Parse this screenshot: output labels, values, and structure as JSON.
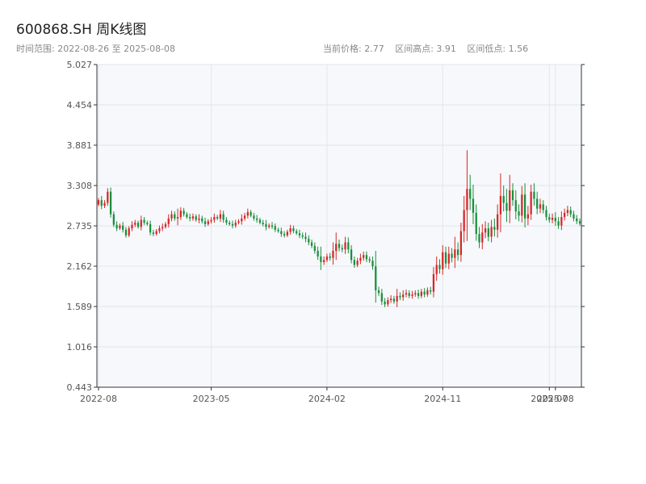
{
  "header": {
    "title": "600868.SH 周K线图",
    "subtitle": "时间范围: 2022-08-26 至 2025-08-08",
    "current_price": "当前价格: 2.77",
    "range_high": "区间高点: 3.91",
    "range_low": "区间低点: 1.56"
  },
  "colors": {
    "up": "#d62728",
    "down": "#1a8f3c",
    "grid": "#e3e6ea",
    "plot_bg": "#f6f8fb",
    "axis": "#333333"
  },
  "chart_data": {
    "type": "candlestick",
    "title": "600868.SH 周K线图",
    "ylim": [
      0.443,
      5.027
    ],
    "yticks": [
      "0.443",
      "1.016",
      "1.589",
      "2.162",
      "2.735",
      "3.308",
      "3.881",
      "4.454",
      "5.027"
    ],
    "xticks": [
      "2022-08",
      "2023-05",
      "2024-02",
      "2024-11",
      "2025-07",
      "2025-08"
    ],
    "xtick_index": [
      0,
      37,
      75,
      113,
      148,
      150
    ],
    "grid": true,
    "close": [
      3.1,
      3.02,
      3.06,
      3.22,
      2.9,
      2.75,
      2.7,
      2.74,
      2.68,
      2.6,
      2.7,
      2.75,
      2.78,
      2.72,
      2.82,
      2.78,
      2.76,
      2.64,
      2.62,
      2.66,
      2.7,
      2.72,
      2.76,
      2.84,
      2.9,
      2.84,
      2.86,
      2.95,
      2.9,
      2.86,
      2.84,
      2.87,
      2.82,
      2.84,
      2.8,
      2.76,
      2.8,
      2.82,
      2.86,
      2.84,
      2.9,
      2.82,
      2.78,
      2.76,
      2.74,
      2.78,
      2.8,
      2.84,
      2.88,
      2.93,
      2.88,
      2.84,
      2.82,
      2.78,
      2.76,
      2.72,
      2.74,
      2.73,
      2.68,
      2.66,
      2.62,
      2.6,
      2.65,
      2.7,
      2.66,
      2.63,
      2.6,
      2.58,
      2.55,
      2.5,
      2.45,
      2.38,
      2.3,
      2.22,
      2.25,
      2.3,
      2.28,
      2.38,
      2.48,
      2.42,
      2.4,
      2.5,
      2.4,
      2.25,
      2.18,
      2.24,
      2.28,
      2.32,
      2.26,
      2.24,
      2.16,
      1.82,
      1.78,
      1.66,
      1.62,
      1.68,
      1.7,
      1.66,
      1.74,
      1.72,
      1.76,
      1.78,
      1.74,
      1.76,
      1.78,
      1.74,
      1.8,
      1.76,
      1.82,
      1.8,
      2.05,
      2.18,
      2.12,
      2.36,
      2.2,
      2.34,
      2.28,
      2.4,
      2.32,
      2.66,
      2.96,
      3.26,
      3.12,
      2.92,
      2.62,
      2.5,
      2.64,
      2.7,
      2.58,
      2.72,
      2.68,
      2.9,
      3.16,
      3.06,
      2.95,
      3.24,
      3.1,
      2.94,
      2.88,
      3.18,
      2.84,
      2.9,
      3.22,
      3.12,
      2.98,
      3.04,
      2.96,
      2.86,
      2.82,
      2.85,
      2.8,
      2.74,
      2.86,
      2.92,
      2.96,
      2.9,
      2.84,
      2.8,
      2.77
    ],
    "up": [
      true,
      false,
      true,
      true,
      false,
      false,
      false,
      true,
      false,
      false,
      true,
      true,
      true,
      false,
      true,
      false,
      false,
      false,
      false,
      true,
      true,
      true,
      true,
      true,
      true,
      false,
      true,
      true,
      false,
      false,
      false,
      true,
      false,
      true,
      false,
      false,
      true,
      true,
      true,
      false,
      true,
      false,
      false,
      false,
      false,
      true,
      true,
      true,
      true,
      true,
      false,
      false,
      false,
      false,
      false,
      false,
      true,
      false,
      false,
      false,
      false,
      false,
      true,
      true,
      false,
      false,
      false,
      false,
      false,
      false,
      false,
      false,
      false,
      false,
      true,
      true,
      false,
      true,
      true,
      false,
      false,
      true,
      false,
      false,
      false,
      true,
      true,
      true,
      false,
      false,
      false,
      false,
      false,
      false,
      false,
      true,
      true,
      false,
      true,
      false,
      true,
      true,
      false,
      true,
      true,
      false,
      true,
      false,
      true,
      false,
      true,
      true,
      false,
      true,
      false,
      true,
      false,
      true,
      false,
      true,
      true,
      true,
      false,
      false,
      false,
      false,
      true,
      true,
      false,
      true,
      false,
      true,
      true,
      false,
      false,
      true,
      false,
      false,
      false,
      true,
      false,
      true,
      true,
      false,
      false,
      true,
      false,
      false,
      false,
      true,
      false,
      false,
      true,
      true,
      true,
      false,
      false,
      false,
      false
    ],
    "ext": [
      0.03,
      0.06,
      0.04,
      0.05,
      0.06,
      0.04,
      0.05,
      0.03,
      0.05,
      0.04,
      0.03,
      0.05,
      0.04,
      0.03,
      0.06,
      0.04,
      0.03,
      0.05,
      0.04,
      0.03,
      0.04,
      0.05,
      0.03,
      0.06,
      0.05,
      0.04,
      0.12,
      0.05,
      0.04,
      0.03,
      0.05,
      0.04,
      0.03,
      0.06,
      0.04,
      0.05,
      0.03,
      0.04,
      0.05,
      0.03,
      0.06,
      0.05,
      0.04,
      0.03,
      0.05,
      0.04,
      0.03,
      0.06,
      0.04,
      0.05,
      0.03,
      0.04,
      0.05,
      0.03,
      0.04,
      0.06,
      0.03,
      0.05,
      0.04,
      0.03,
      0.05,
      0.04,
      0.03,
      0.05,
      0.04,
      0.03,
      0.05,
      0.04,
      0.06,
      0.05,
      0.04,
      0.05,
      0.06,
      0.14,
      0.05,
      0.04,
      0.05,
      0.12,
      0.16,
      0.06,
      0.05,
      0.08,
      0.07,
      0.06,
      0.05,
      0.04,
      0.06,
      0.05,
      0.05,
      0.04,
      0.06,
      0.22,
      0.05,
      0.06,
      0.05,
      0.04,
      0.05,
      0.04,
      0.1,
      0.05,
      0.06,
      0.05,
      0.04,
      0.05,
      0.04,
      0.05,
      0.04,
      0.05,
      0.04,
      0.05,
      0.1,
      0.12,
      0.08,
      0.1,
      0.08,
      0.1,
      0.08,
      0.18,
      0.1,
      0.12,
      0.2,
      0.55,
      0.2,
      0.2,
      0.12,
      0.1,
      0.12,
      0.1,
      0.08,
      0.1,
      0.12,
      0.14,
      0.32,
      0.15,
      0.2,
      0.22,
      0.1,
      0.14,
      0.1,
      0.12,
      0.16,
      0.12,
      0.1,
      0.12,
      0.1,
      0.08,
      0.06,
      0.06,
      0.05,
      0.06,
      0.08,
      0.06,
      0.08,
      0.06,
      0.06,
      0.05,
      0.05,
      0.05,
      0.04
    ]
  }
}
